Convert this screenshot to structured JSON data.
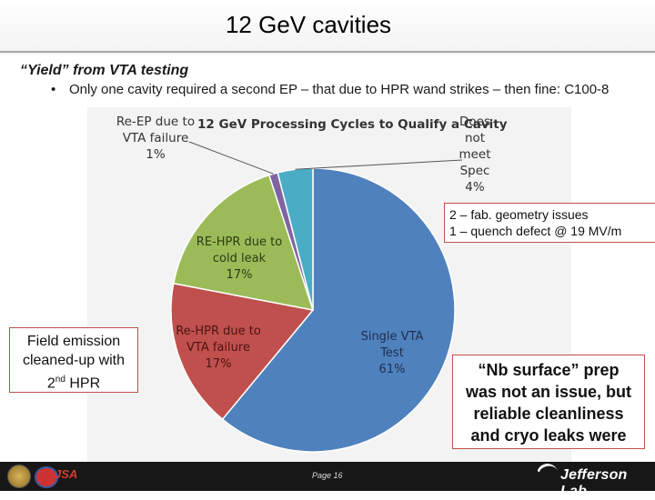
{
  "slide": {
    "title": "12 GeV cavities",
    "subtitle": "“Yield” from VTA testing",
    "bullet_mark": "•",
    "bullet": "Only one cavity required a second EP – that due to HPR wand strikes – then fine: C100-8"
  },
  "chart_data": {
    "type": "pie",
    "title": "12 GeV Processing Cycles to Qualify a Cavity",
    "slices": [
      {
        "label_lines": [
          "Single VTA Test",
          "61%"
        ],
        "value": 61,
        "color": "#4f81bd"
      },
      {
        "label_lines": [
          "Re-HPR due to",
          "VTA failure",
          "17%"
        ],
        "value": 17,
        "color": "#c0504d"
      },
      {
        "label_lines": [
          "RE-HPR due to",
          "cold leak",
          "17%"
        ],
        "value": 17,
        "color": "#9bbb59"
      },
      {
        "label_lines": [
          "Re-EP due to",
          "VTA failure",
          "1%"
        ],
        "value": 1,
        "color": "#8064a2"
      },
      {
        "label_lines": [
          "Does",
          "not",
          "meet",
          "Spec",
          "4%"
        ],
        "value": 4,
        "color": "#4bacc6"
      }
    ]
  },
  "callouts": {
    "geometry": [
      "2 – fab. geometry issues",
      "1 – quench defect @ 19 MV/m"
    ],
    "field_emission": {
      "line1": "Field emission",
      "line2": "cleaned-up with",
      "line3_num": "2",
      "line3_sup": "nd",
      "line3_rest": " HPR"
    },
    "nb_surface": [
      "“Nb surface” prep",
      "was not an issue, but",
      "reliable cleanliness",
      "and cryo leaks were"
    ]
  },
  "footer": {
    "page": "Page 16",
    "left_logo_text": "JSA",
    "right_logo_text": "Jefferson Lab"
  }
}
